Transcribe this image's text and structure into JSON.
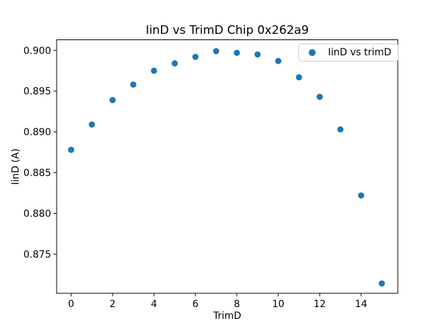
{
  "chart_data": {
    "type": "scatter",
    "title": "IinD vs TrimD Chip 0x262a9",
    "xlabel": "TrimD",
    "ylabel": "IinD (A)",
    "legend": {
      "label": "IinD vs trimD",
      "position": "upper right"
    },
    "series_name": "IinD vs trimD",
    "x": [
      0,
      1,
      2,
      3,
      4,
      5,
      6,
      7,
      8,
      9,
      10,
      11,
      12,
      13,
      14,
      15
    ],
    "y": [
      0.8878,
      0.8909,
      0.8939,
      0.8958,
      0.8975,
      0.8984,
      0.8992,
      0.8999,
      0.8997,
      0.8995,
      0.8987,
      0.8967,
      0.8943,
      0.8903,
      0.8822,
      0.8714
    ],
    "xlim": [
      -0.7,
      15.77
    ],
    "ylim": [
      0.8702,
      0.9013
    ],
    "xticks": [
      0,
      2,
      4,
      6,
      8,
      10,
      12,
      14
    ],
    "xtick_labels": [
      "0",
      "2",
      "4",
      "6",
      "8",
      "10",
      "12",
      "14"
    ],
    "yticks": [
      0.875,
      0.88,
      0.885,
      0.89,
      0.895,
      0.9
    ],
    "ytick_labels": [
      "0.875",
      "0.880",
      "0.885",
      "0.890",
      "0.895",
      "0.900"
    ],
    "marker_color": "#1f77b4",
    "spine_color": "#000000",
    "grid": false
  }
}
